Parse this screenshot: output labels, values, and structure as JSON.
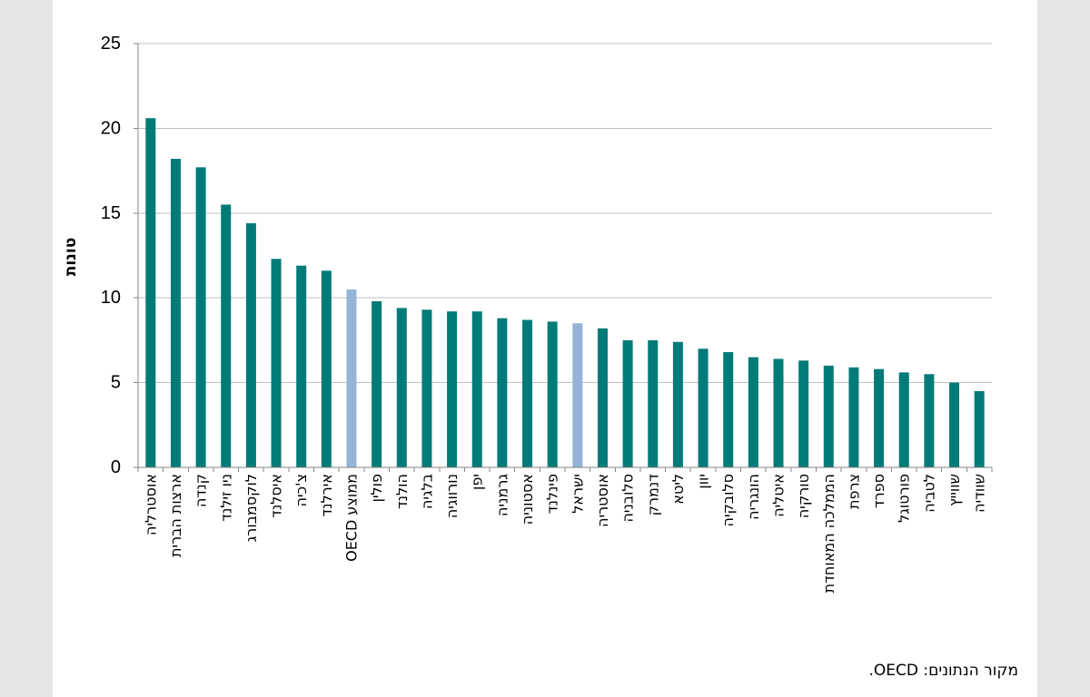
{
  "chart_data": {
    "type": "bar",
    "ylabel": "טונות",
    "ylim": [
      0,
      25
    ],
    "yticks": [
      0,
      5,
      10,
      15,
      20,
      25
    ],
    "grid": true,
    "categories": [
      "אוסטרליה",
      "ארצות הברית",
      "קנדה",
      "ניו זילנד",
      "לוקסמבורג",
      "איסלנד",
      "צ'כיה",
      "אירלנד",
      "ממוצע OECD",
      "פולין",
      "הולנד",
      "בלגיה",
      "נורווגיה",
      "יפן",
      "גרמניה",
      "אסטוניה",
      "פינלנד",
      "ישראל",
      "אוסטריה",
      "סלובניה",
      "דנמרק",
      "ליטא",
      "יוון",
      "סלובקיה",
      "הונגריה",
      "איטליה",
      "טורקיה",
      "הממלכה המאוחדת",
      "צרפת",
      "ספרד",
      "פורטוגל",
      "לטביה",
      "שווייץ",
      "שוודיה"
    ],
    "values": [
      20.6,
      18.2,
      17.7,
      15.5,
      14.4,
      12.3,
      11.9,
      11.6,
      10.5,
      9.8,
      9.4,
      9.3,
      9.2,
      9.2,
      8.8,
      8.7,
      8.6,
      8.5,
      8.2,
      7.5,
      7.5,
      7.4,
      7.0,
      6.8,
      6.5,
      6.4,
      6.3,
      6.0,
      5.9,
      5.8,
      5.6,
      5.5,
      5.0,
      4.5
    ],
    "highlight_indices": [
      8,
      17
    ],
    "colors": {
      "bar": "#007b78",
      "highlight": "#95b3d7"
    }
  },
  "source": "מקור הנתונים: OECD."
}
